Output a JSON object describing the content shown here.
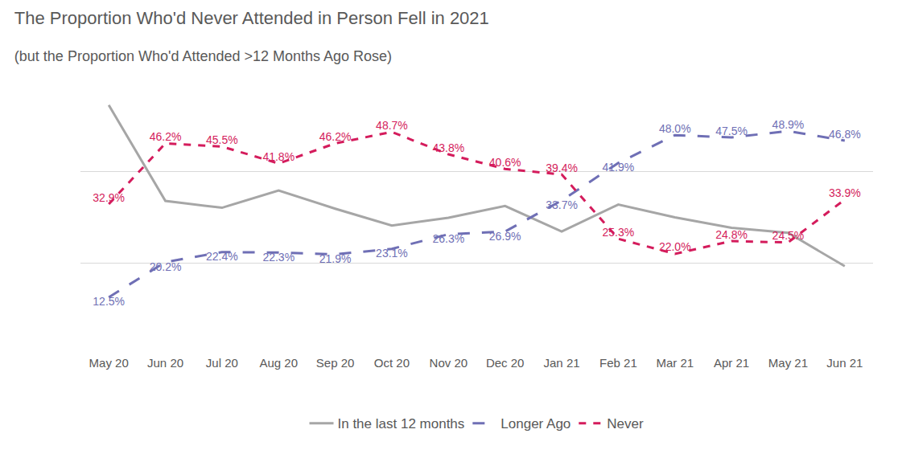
{
  "chart_data": {
    "type": "line",
    "title": "The Proportion Who'd Never Attended in Person Fell in 2021",
    "subtitle": "(but the Proportion Who'd Attended >12 Months Ago Rose)",
    "categories": [
      "May 20",
      "Jun 20",
      "Jul 20",
      "Aug 20",
      "Sep 20",
      "Oct 20",
      "Nov 20",
      "Dec 20",
      "Jan 21",
      "Feb 21",
      "Mar 21",
      "Apr 21",
      "May 21",
      "Jun 21"
    ],
    "series": [
      {
        "name": "In the last 12 months",
        "color": "#a6a6a6",
        "line_style": "solid",
        "data_labels": false,
        "values": [
          54.6,
          33.6,
          32.1,
          35.9,
          31.9,
          28.2,
          29.9,
          32.5,
          26.9,
          32.8,
          30.0,
          27.7,
          26.6,
          19.3
        ]
      },
      {
        "name": "Longer Ago",
        "color": "#6f6fb5",
        "line_style": "longdash",
        "data_labels": true,
        "values": [
          12.5,
          20.2,
          22.4,
          22.3,
          21.9,
          23.1,
          26.3,
          26.9,
          33.7,
          41.9,
          48.0,
          47.5,
          48.9,
          46.8
        ],
        "value_labels": [
          "12.5%",
          "20.2%",
          "22.4%",
          "22.3%",
          "21.9%",
          "23.1%",
          "26.3%",
          "26.9%",
          "33.7%",
          "41.9%",
          "48.0%",
          "47.5%",
          "48.9%",
          "46.8%"
        ]
      },
      {
        "name": "Never",
        "color": "#d41c5c",
        "line_style": "dash",
        "data_labels": true,
        "values": [
          32.9,
          46.2,
          45.5,
          41.8,
          46.2,
          48.7,
          43.8,
          40.6,
          39.4,
          25.3,
          22.0,
          24.8,
          24.5,
          33.9
        ],
        "value_labels": [
          "32.9%",
          "46.2%",
          "45.5%",
          "41.8%",
          "46.2%",
          "48.7%",
          "43.8%",
          "40.6%",
          "39.4%",
          "25.3%",
          "22.0%",
          "24.8%",
          "24.5%",
          "33.9%"
        ]
      }
    ],
    "ylim": [
      0,
      60
    ],
    "yticks": [
      0,
      20,
      40,
      60
    ],
    "grid": true,
    "tick_labels": "x",
    "legend": "bottom"
  }
}
